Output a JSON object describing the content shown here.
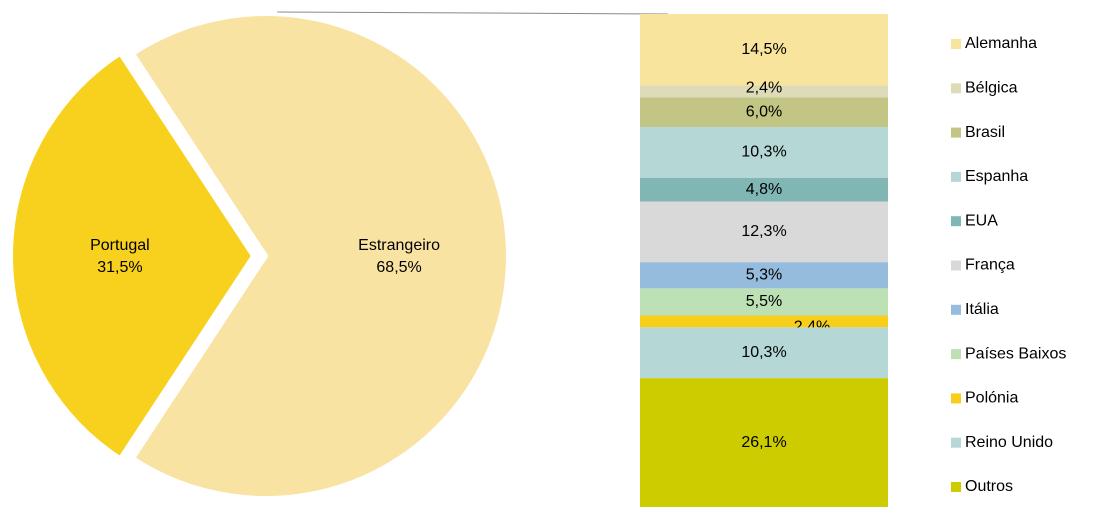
{
  "chart_data": [
    {
      "type": "pie",
      "categories": [
        "Portugal",
        "Estrangeiro"
      ],
      "values": [
        31.5,
        68.5
      ],
      "value_labels": [
        "31,5%",
        "68,5%"
      ],
      "colors": [
        "#f7d11e",
        "#f9e3a3"
      ]
    },
    {
      "type": "stacked-bar",
      "categories": [
        "Alemanha",
        "Bélgica",
        "Brasil",
        "Espanha",
        "EUA",
        "França",
        "Itália",
        "Países Baixos",
        "Polónia",
        "Reino Unido",
        "Outros"
      ],
      "values": [
        14.5,
        2.4,
        6.0,
        10.3,
        4.8,
        12.3,
        5.3,
        5.5,
        2.4,
        10.3,
        26.1
      ],
      "value_labels": [
        "14,5%",
        "2,4%",
        "6,0%",
        "10,3%",
        "4,8%",
        "12,3%",
        "5,3%",
        "5,5%",
        "2,4%",
        "10,3%",
        "26,1%"
      ],
      "colors": [
        "#f9e49d",
        "#dedcb8",
        "#c3c584",
        "#b5d7d5",
        "#80b7b4",
        "#d9d9d9",
        "#95bbdd",
        "#bde0b5",
        "#f7ce1a",
        "#b5d7d5",
        "#cccc00"
      ],
      "legend": "right"
    }
  ]
}
